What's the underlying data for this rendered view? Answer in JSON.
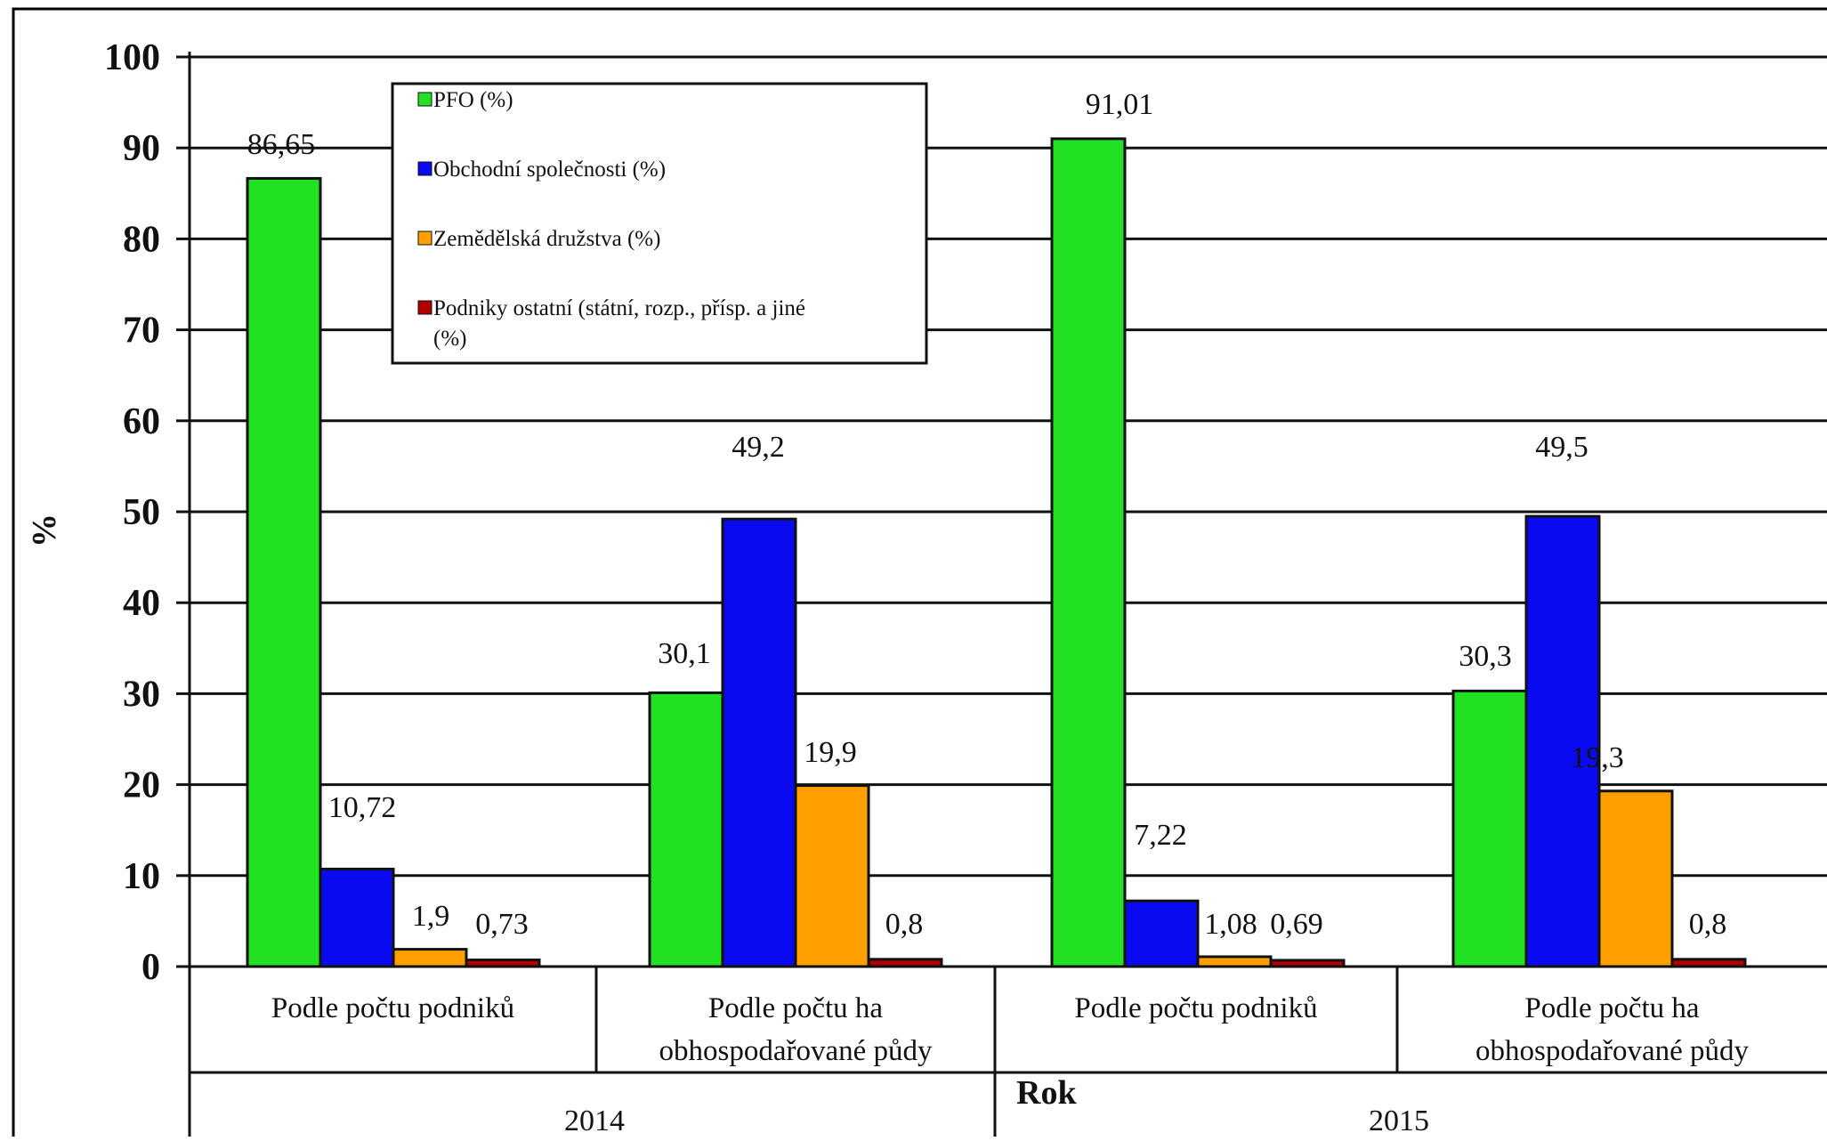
{
  "chart_data": {
    "type": "bar",
    "ylabel": "%",
    "xlabel": "Rok",
    "ylim": [
      0,
      100
    ],
    "yticks": [
      "0",
      "10",
      "20",
      "30",
      "40",
      "50",
      "60",
      "70",
      "80",
      "90",
      "100"
    ],
    "grid": true,
    "legend_position": "top-left",
    "groups": [
      {
        "category": "Podle počtu podniků",
        "year": "2014"
      },
      {
        "category": "Podle počtu ha obhospodařované půdy",
        "year": "2014"
      },
      {
        "category": "Podle počtu podniků",
        "year": "2015"
      },
      {
        "category": "Podle počtu ha obhospodařované půdy",
        "year": "2015"
      }
    ],
    "category_lines": [
      [
        "Podle počtu podniků"
      ],
      [
        "Podle počtu ha",
        "obhospodařované půdy"
      ],
      [
        "Podle počtu podniků"
      ],
      [
        "Podle počtu ha",
        "obhospodařované půdy"
      ]
    ],
    "years": [
      "2014",
      "2015"
    ],
    "series": [
      {
        "name": "PFO (%)",
        "color": "#22e022",
        "values": [
          86.65,
          30.1,
          91.01,
          30.3
        ],
        "labels": [
          "86,65",
          "30,1",
          "91,01",
          "30,3"
        ]
      },
      {
        "name": "Obchodní společnosti (%)",
        "color": "#0a0af0",
        "values": [
          10.72,
          49.2,
          7.22,
          49.5
        ],
        "labels": [
          "10,72",
          "49,2",
          "7,22",
          "49,5"
        ]
      },
      {
        "name": "Zemědělská družstva (%)",
        "color": "#ff9f00",
        "values": [
          1.9,
          19.9,
          1.08,
          19.3
        ],
        "labels": [
          "1,9",
          "19,9",
          "1,08",
          "19,3"
        ]
      },
      {
        "name": "Podniky ostatní (státní, rozp., přísp. a jiné (%)",
        "name_lines": [
          "Podniky ostatní (státní, rozp., přísp. a jiné",
          "(%)"
        ],
        "color": "#b00000",
        "values": [
          0.73,
          0.8,
          0.69,
          0.8
        ],
        "labels": [
          "0,73",
          "0,8",
          "0,69",
          "0,8"
        ]
      }
    ]
  }
}
